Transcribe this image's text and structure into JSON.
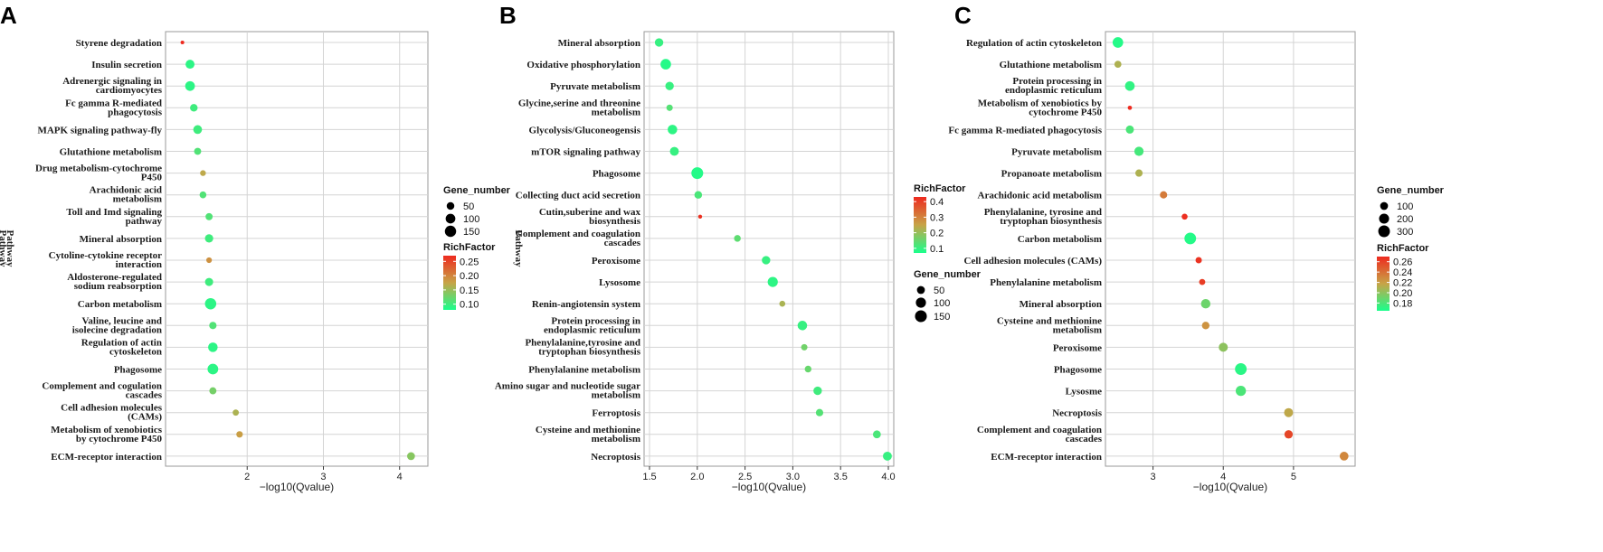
{
  "figure": {
    "color_low": "#1AFF8C",
    "color_high": "#EE2A1F"
  },
  "chart_data": [
    {
      "panel": "A",
      "type": "scatter",
      "xlabel": "−log10(Qvalue)",
      "ylabel": "Pathway",
      "xlim": [
        1.0,
        4.3
      ],
      "xticks": [
        2,
        3,
        4
      ],
      "tick_labels": [
        "2",
        "3",
        "4"
      ],
      "size_legend": {
        "title": "Gene_number",
        "labels": [
          "50",
          "100",
          "150"
        ],
        "values": [
          50,
          100,
          150
        ],
        "range": [
          1,
          180
        ]
      },
      "color_legend": {
        "title": "RichFactor",
        "labels": [
          "0.25",
          "0.20",
          "0.15",
          "0.10"
        ],
        "values": [
          0.25,
          0.2,
          0.15,
          0.1
        ],
        "range": [
          0.08,
          0.27
        ]
      },
      "points": [
        {
          "pathway": "Styrene degradation",
          "x": 1.15,
          "gene_number": 3,
          "rich_factor": 0.27
        },
        {
          "pathway": "Insulin secretion",
          "x": 1.25,
          "gene_number": 80,
          "rich_factor": 0.09
        },
        {
          "pathway": "Adrenergic signaling in cardiomyocytes",
          "x": 1.25,
          "gene_number": 100,
          "rich_factor": 0.09
        },
        {
          "pathway": "Fc gamma R-mediated phagocytosis",
          "x": 1.3,
          "gene_number": 50,
          "rich_factor": 0.1
        },
        {
          "pathway": "MAPK signaling pathway-fly",
          "x": 1.35,
          "gene_number": 75,
          "rich_factor": 0.1
        },
        {
          "pathway": "Glutathione metabolism",
          "x": 1.35,
          "gene_number": 40,
          "rich_factor": 0.11
        },
        {
          "pathway": "Drug metabolism-cytochrome P450",
          "x": 1.42,
          "gene_number": 20,
          "rich_factor": 0.17
        },
        {
          "pathway": "Arachidonic acid metabolism",
          "x": 1.42,
          "gene_number": 35,
          "rich_factor": 0.11
        },
        {
          "pathway": "Toll and Imd signaling pathway",
          "x": 1.5,
          "gene_number": 40,
          "rich_factor": 0.11
        },
        {
          "pathway": "Mineral absorption",
          "x": 1.5,
          "gene_number": 65,
          "rich_factor": 0.1
        },
        {
          "pathway": "Cytoline-cytokine receptor interaction",
          "x": 1.5,
          "gene_number": 18,
          "rich_factor": 0.19
        },
        {
          "pathway": "Aldosterone-regulated sodium reabsorption",
          "x": 1.5,
          "gene_number": 60,
          "rich_factor": 0.1
        },
        {
          "pathway": "Carbon metabolism",
          "x": 1.52,
          "gene_number": 150,
          "rich_factor": 0.09
        },
        {
          "pathway": "Valine, leucine and isolecine degradation",
          "x": 1.55,
          "gene_number": 45,
          "rich_factor": 0.11
        },
        {
          "pathway": "Regulation of actin cytoskeleton",
          "x": 1.55,
          "gene_number": 95,
          "rich_factor": 0.09
        },
        {
          "pathway": "Phagosome",
          "x": 1.55,
          "gene_number": 130,
          "rich_factor": 0.09
        },
        {
          "pathway": "Complement and cogulation cascades",
          "x": 1.55,
          "gene_number": 40,
          "rich_factor": 0.13
        },
        {
          "pathway": "Cell adhesion molecules (CAMs)",
          "x": 1.85,
          "gene_number": 25,
          "rich_factor": 0.16
        },
        {
          "pathway": "Metabolism of xenobiotics by cytochrome P450",
          "x": 1.9,
          "gene_number": 30,
          "rich_factor": 0.18
        },
        {
          "pathway": "ECM-receptor interaction",
          "x": 4.15,
          "gene_number": 55,
          "rich_factor": 0.14
        }
      ]
    },
    {
      "panel": "B",
      "type": "scatter",
      "xlabel": "−log10(Qvalue)",
      "ylabel": "Pathway",
      "xlim": [
        1.5,
        4.0
      ],
      "xticks": [
        1.5,
        2.0,
        2.5,
        3.0,
        3.5,
        4.0
      ],
      "tick_labels": [
        "1.5",
        "2.0",
        "2.5",
        "3.0",
        "3.5",
        "4.0"
      ],
      "size_legend": {
        "title": "Gene_number",
        "labels": [
          "50",
          "100",
          "150"
        ],
        "values": [
          50,
          100,
          150
        ],
        "range": [
          1,
          160
        ]
      },
      "color_legend": {
        "title": "RichFactor",
        "labels": [
          "0.4",
          "0.3",
          "0.2",
          "0.1"
        ],
        "values": [
          0.4,
          0.3,
          0.2,
          0.1
        ],
        "range": [
          0.07,
          0.43
        ]
      },
      "points": [
        {
          "pathway": "Mineral absorption",
          "x": 1.6,
          "gene_number": 60,
          "rich_factor": 0.1
        },
        {
          "pathway": "Oxidative phosphorylation",
          "x": 1.67,
          "gene_number": 110,
          "rich_factor": 0.08
        },
        {
          "pathway": "Pyruvate metabolism",
          "x": 1.71,
          "gene_number": 60,
          "rich_factor": 0.1
        },
        {
          "pathway": "Glycine,serine and threonine metabolism",
          "x": 1.71,
          "gene_number": 25,
          "rich_factor": 0.13
        },
        {
          "pathway": "Glycolysis/Gluconeogensis",
          "x": 1.74,
          "gene_number": 85,
          "rich_factor": 0.09
        },
        {
          "pathway": "mTOR signaling pathway",
          "x": 1.76,
          "gene_number": 70,
          "rich_factor": 0.1
        },
        {
          "pathway": "Phagosome",
          "x": 2.0,
          "gene_number": 150,
          "rich_factor": 0.08
        },
        {
          "pathway": "Collecting duct acid secretion",
          "x": 2.01,
          "gene_number": 45,
          "rich_factor": 0.12
        },
        {
          "pathway": "Cutin,suberine and wax biosynthesis",
          "x": 2.03,
          "gene_number": 4,
          "rich_factor": 0.42
        },
        {
          "pathway": "Complement and coagulation cascades",
          "x": 2.42,
          "gene_number": 30,
          "rich_factor": 0.14
        },
        {
          "pathway": "Peroxisome",
          "x": 2.72,
          "gene_number": 60,
          "rich_factor": 0.1
        },
        {
          "pathway": "Lysosome",
          "x": 2.79,
          "gene_number": 100,
          "rich_factor": 0.09
        },
        {
          "pathway": "Renin-angiotensin system",
          "x": 2.89,
          "gene_number": 20,
          "rich_factor": 0.22
        },
        {
          "pathway": "Protein processing in endoplasmic reticulum",
          "x": 3.1,
          "gene_number": 85,
          "rich_factor": 0.1
        },
        {
          "pathway": "Phenylalanine,tyrosine and tryptophan biosynthesis",
          "x": 3.12,
          "gene_number": 25,
          "rich_factor": 0.16
        },
        {
          "pathway": "Phenylalanine metabolism",
          "x": 3.16,
          "gene_number": 30,
          "rich_factor": 0.15
        },
        {
          "pathway": "Amino sugar and nucleotide sugar metabolism",
          "x": 3.26,
          "gene_number": 60,
          "rich_factor": 0.11
        },
        {
          "pathway": "Ferroptosis",
          "x": 3.28,
          "gene_number": 40,
          "rich_factor": 0.13
        },
        {
          "pathway": "Cysteine and methionine metabolism",
          "x": 3.88,
          "gene_number": 50,
          "rich_factor": 0.12
        },
        {
          "pathway": "Necroptosis",
          "x": 3.99,
          "gene_number": 70,
          "rich_factor": 0.1
        }
      ]
    },
    {
      "panel": "C",
      "type": "scatter",
      "xlabel": "−log10(Qvalue)",
      "ylabel": "Pathway",
      "xlim": [
        2.4,
        5.8
      ],
      "xticks": [
        3,
        4,
        5
      ],
      "tick_labels": [
        "3",
        "4",
        "5"
      ],
      "size_legend": {
        "title": "Gene_number",
        "labels": [
          "100",
          "200",
          "300"
        ],
        "values": [
          100,
          200,
          300
        ],
        "range": [
          1,
          330
        ]
      },
      "color_legend": {
        "title": "RichFactor",
        "labels": [
          "0.26",
          "0.24",
          "0.22",
          "0.20",
          "0.18"
        ],
        "values": [
          0.26,
          0.24,
          0.22,
          0.2,
          0.18
        ],
        "range": [
          0.165,
          0.27
        ]
      },
      "points": [
        {
          "pathway": "Regulation of actin cytoskeleton",
          "x": 2.5,
          "gene_number": 230,
          "rich_factor": 0.168
        },
        {
          "pathway": "Glutathione metabolism",
          "x": 2.5,
          "gene_number": 70,
          "rich_factor": 0.21
        },
        {
          "pathway": "Protein processing in endoplasmic reticulum",
          "x": 2.67,
          "gene_number": 180,
          "rich_factor": 0.172
        },
        {
          "pathway": "Metabolism of xenobiotics by cytochrome P450",
          "x": 2.67,
          "gene_number": 10,
          "rich_factor": 0.27
        },
        {
          "pathway": "Fc gamma R-mediated phagocytosis",
          "x": 2.67,
          "gene_number": 110,
          "rich_factor": 0.18
        },
        {
          "pathway": "Pyruvate metabolism",
          "x": 2.8,
          "gene_number": 160,
          "rich_factor": 0.178
        },
        {
          "pathway": "Propanoate metabolism",
          "x": 2.8,
          "gene_number": 80,
          "rich_factor": 0.21
        },
        {
          "pathway": "Arachidonic acid metabolism",
          "x": 3.15,
          "gene_number": 80,
          "rich_factor": 0.235
        },
        {
          "pathway": "Phenylalanine, tyrosine and tryptophan biosynthesis",
          "x": 3.45,
          "gene_number": 40,
          "rich_factor": 0.268
        },
        {
          "pathway": "Carbon metabolism",
          "x": 3.53,
          "gene_number": 300,
          "rich_factor": 0.168
        },
        {
          "pathway": "Cell adhesion molecules (CAMs)",
          "x": 3.65,
          "gene_number": 50,
          "rich_factor": 0.266
        },
        {
          "pathway": "Phenylalanine metabolism",
          "x": 3.7,
          "gene_number": 45,
          "rich_factor": 0.262
        },
        {
          "pathway": "Mineral absorption",
          "x": 3.75,
          "gene_number": 170,
          "rich_factor": 0.19
        },
        {
          "pathway": "Cysteine and methionine metabolism",
          "x": 3.75,
          "gene_number": 90,
          "rich_factor": 0.225
        },
        {
          "pathway": "Peroxisome",
          "x": 4.0,
          "gene_number": 150,
          "rich_factor": 0.2
        },
        {
          "pathway": "Phagosome",
          "x": 4.25,
          "gene_number": 300,
          "rich_factor": 0.17
        },
        {
          "pathway": "Lysosme",
          "x": 4.25,
          "gene_number": 210,
          "rich_factor": 0.18
        },
        {
          "pathway": "Necroptosis",
          "x": 4.93,
          "gene_number": 150,
          "rich_factor": 0.215
        },
        {
          "pathway": "Complement and coagulation cascades",
          "x": 4.93,
          "gene_number": 120,
          "rich_factor": 0.258
        },
        {
          "pathway": "ECM-receptor interaction",
          "x": 5.72,
          "gene_number": 140,
          "rich_factor": 0.23
        }
      ]
    }
  ]
}
